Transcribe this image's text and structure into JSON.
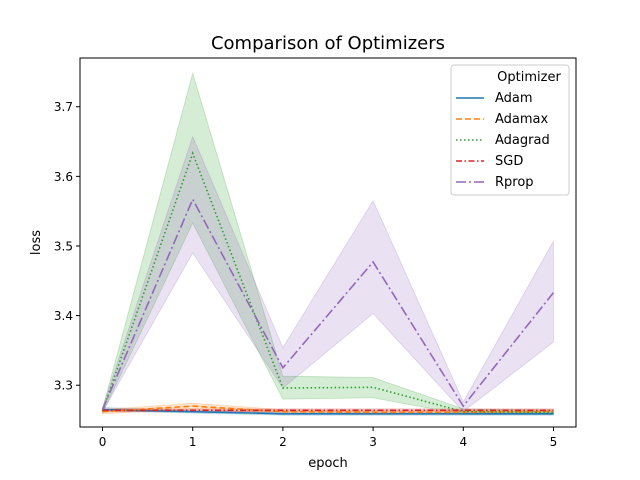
{
  "chart_data": {
    "type": "line",
    "title": "Comparison of Optimizers",
    "xlabel": "epoch",
    "ylabel": "loss",
    "x": [
      0,
      1,
      2,
      3,
      4,
      5
    ],
    "xlim": [
      -0.25,
      5.25
    ],
    "ylim": [
      3.24,
      3.77
    ],
    "xticks": [
      0,
      1,
      2,
      3,
      4,
      5
    ],
    "yticks": [
      3.3,
      3.4,
      3.5,
      3.6,
      3.7
    ],
    "ytick_labels": [
      "3.3",
      "3.4",
      "3.5",
      "3.6",
      "3.7"
    ],
    "grid": false,
    "legend": {
      "title": "Optimizer",
      "placement": "top-right"
    },
    "series": [
      {
        "name": "Adam",
        "color": "#1f77b4",
        "dash": "solid",
        "values": [
          3.265,
          3.262,
          3.259,
          3.259,
          3.259,
          3.259
        ],
        "lower": [
          3.263,
          3.26,
          3.257,
          3.257,
          3.257,
          3.257
        ],
        "upper": [
          3.268,
          3.264,
          3.261,
          3.261,
          3.261,
          3.261
        ]
      },
      {
        "name": "Adamax",
        "color": "#ff7f0e",
        "dash": "dashed",
        "values": [
          3.262,
          3.27,
          3.262,
          3.261,
          3.261,
          3.262
        ],
        "lower": [
          3.259,
          3.266,
          3.259,
          3.258,
          3.259,
          3.259
        ],
        "upper": [
          3.265,
          3.274,
          3.265,
          3.264,
          3.264,
          3.265
        ]
      },
      {
        "name": "Adagrad",
        "color": "#2ca02c",
        "dash": "dotted",
        "values": [
          3.263,
          3.633,
          3.296,
          3.297,
          3.262,
          3.261
        ],
        "lower": [
          3.26,
          3.533,
          3.28,
          3.282,
          3.258,
          3.258
        ],
        "upper": [
          3.266,
          3.748,
          3.313,
          3.311,
          3.266,
          3.264
        ]
      },
      {
        "name": "SGD",
        "color": "#d62728",
        "dash": "dashdot",
        "values": [
          3.264,
          3.264,
          3.264,
          3.264,
          3.264,
          3.264
        ],
        "lower": [
          3.262,
          3.262,
          3.262,
          3.262,
          3.262,
          3.262
        ],
        "upper": [
          3.266,
          3.266,
          3.266,
          3.266,
          3.266,
          3.266
        ]
      },
      {
        "name": "Rprop",
        "color": "#9467bd",
        "dash": "longdashdot",
        "values": [
          3.265,
          3.567,
          3.325,
          3.477,
          3.27,
          3.433
        ],
        "lower": [
          3.262,
          3.49,
          3.296,
          3.403,
          3.262,
          3.362
        ],
        "upper": [
          3.268,
          3.657,
          3.354,
          3.565,
          3.276,
          3.507
        ]
      }
    ]
  }
}
